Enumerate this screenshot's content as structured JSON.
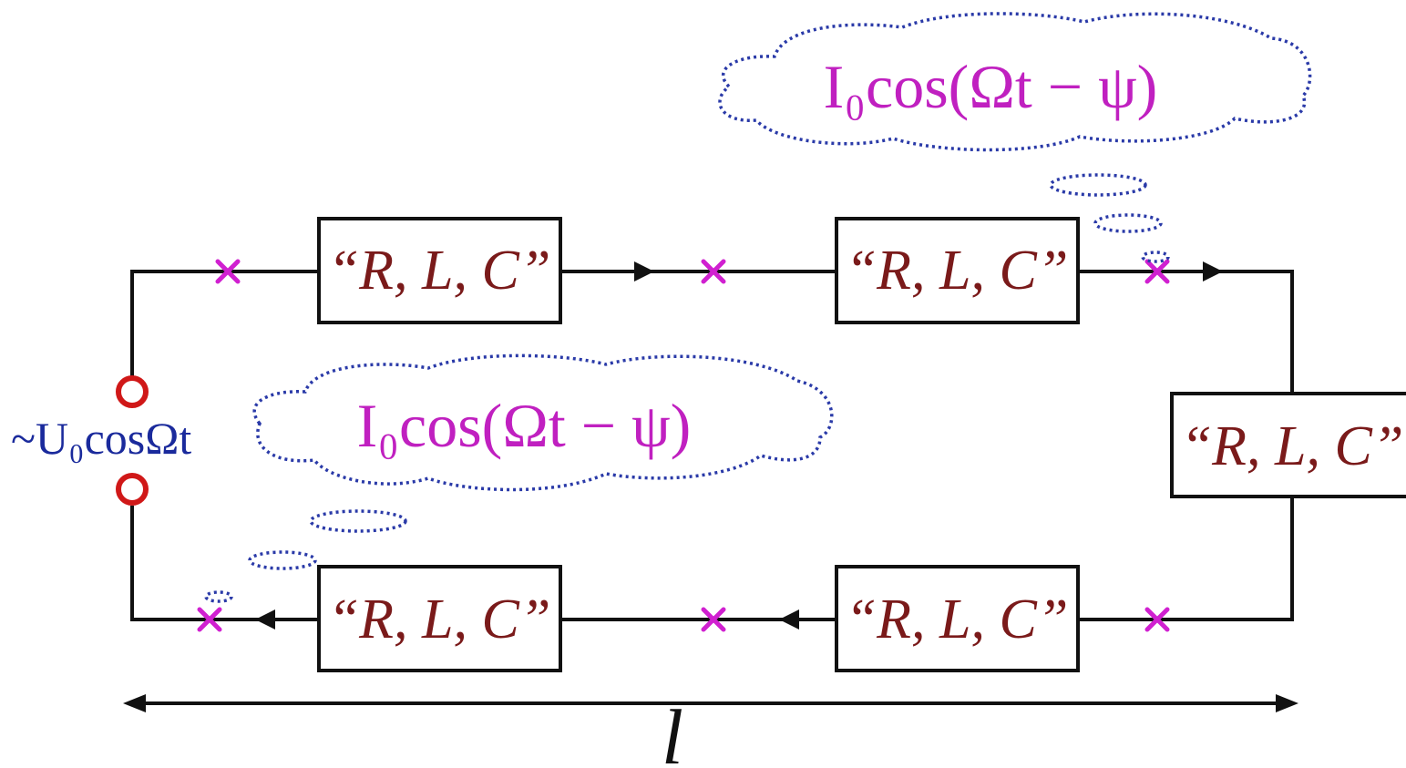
{
  "diagram": {
    "element_label": "“R, L, C”",
    "source_label": "~U₀cosΩt",
    "current_label_top": "I₀cos(Ωt − ψ)",
    "current_label_bottom": "I₀cos(Ωt − ψ)",
    "length_label": "l",
    "colors": {
      "wire": "#111111",
      "element_text": "#7a1a1a",
      "current_text": "#c020c0",
      "source_text": "#1a2a9c",
      "cloud": "#2a3aa8",
      "cross_marker": "#d020d0",
      "terminal": "#d01818"
    }
  }
}
